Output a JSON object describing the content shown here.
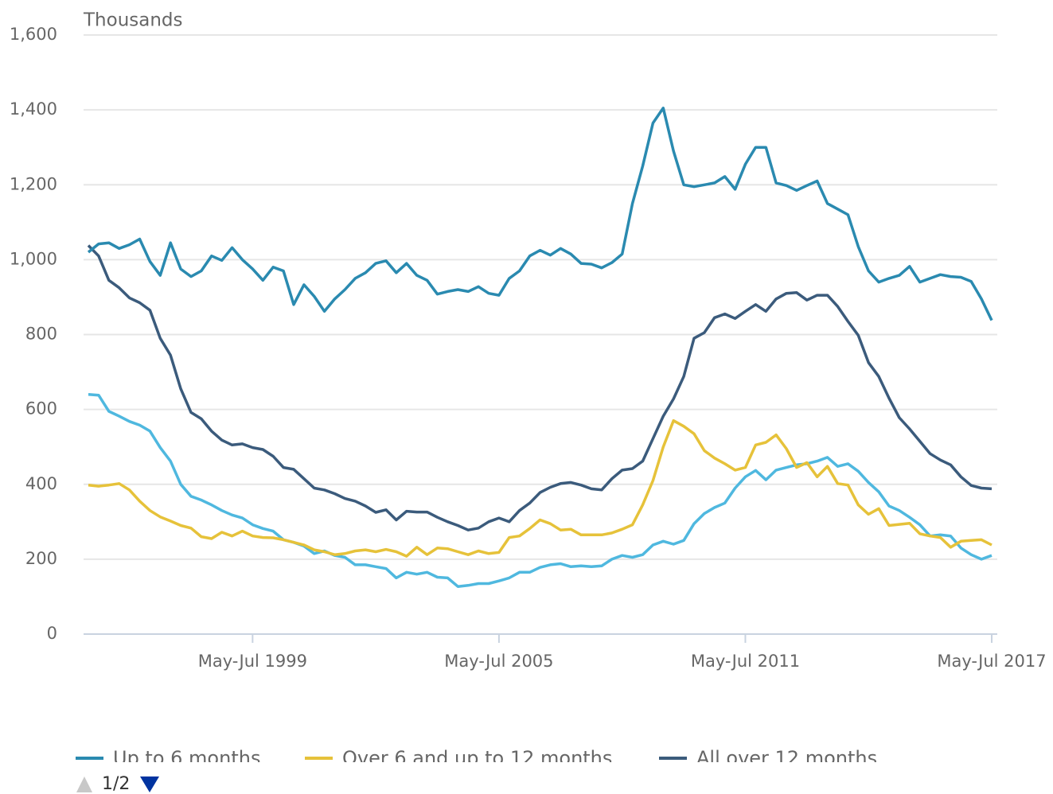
{
  "chart_data": {
    "type": "line",
    "y_label": "Thousands",
    "categories": [
      null,
      null,
      null,
      null,
      null,
      null,
      null,
      null,
      null,
      null,
      null,
      null,
      null,
      null,
      null,
      null,
      "May-Jul 1999",
      null,
      null,
      null,
      null,
      null,
      null,
      null,
      null,
      null,
      null,
      null,
      null,
      null,
      null,
      null,
      null,
      null,
      null,
      null,
      null,
      null,
      null,
      null,
      "May-Jul 2005",
      null,
      null,
      null,
      null,
      null,
      null,
      null,
      null,
      null,
      null,
      null,
      null,
      null,
      null,
      null,
      null,
      null,
      null,
      null,
      null,
      null,
      null,
      null,
      "May-Jul 2011",
      null,
      null,
      null,
      null,
      null,
      null,
      null,
      null,
      null,
      null,
      null,
      null,
      null,
      null,
      null,
      null,
      null,
      null,
      null,
      null,
      null,
      null,
      null,
      "May-Jul 2017"
    ],
    "series": [
      {
        "name": "Up to 6 months",
        "color": "#2a8ab0",
        "values": [
          1020,
          1042,
          1045,
          1030,
          1040,
          1055,
          995,
          958,
          1045,
          975,
          955,
          970,
          1010,
          998,
          1032,
          1000,
          975,
          945,
          980,
          970,
          880,
          933,
          902,
          862,
          895,
          920,
          950,
          965,
          990,
          997,
          965,
          990,
          958,
          945,
          908,
          915,
          920,
          915,
          928,
          910,
          905,
          950,
          970,
          1010,
          1025,
          1012,
          1030,
          1015,
          990,
          988,
          978,
          992,
          1015,
          1150,
          1250,
          1365,
          1405,
          1290,
          1200,
          1195,
          1200,
          1205,
          1222,
          1188,
          1255,
          1300,
          1300,
          1205,
          1198,
          1185,
          1198,
          1210,
          1150,
          1135,
          1120,
          1035,
          970,
          940,
          950,
          958,
          982,
          940,
          950,
          960,
          955,
          953,
          942,
          895,
          838
        ]
      },
      {
        "name": "Over 6 and up to 12 months",
        "color": "#e6c23a",
        "values": [
          398,
          395,
          398,
          402,
          385,
          355,
          330,
          313,
          302,
          290,
          283,
          260,
          255,
          272,
          262,
          275,
          262,
          258,
          257,
          252,
          245,
          238,
          225,
          220,
          212,
          215,
          222,
          225,
          220,
          226,
          220,
          208,
          232,
          212,
          230,
          228,
          220,
          212,
          222,
          215,
          218,
          258,
          262,
          282,
          305,
          295,
          278,
          280,
          265,
          265,
          265,
          270,
          280,
          292,
          345,
          410,
          500,
          570,
          555,
          535,
          490,
          470,
          455,
          438,
          445,
          505,
          512,
          532,
          495,
          445,
          458,
          420,
          448,
          402,
          398,
          345,
          320,
          335,
          290,
          293,
          296,
          268,
          262,
          258,
          232,
          248,
          250,
          252,
          238
        ]
      },
      {
        "name": "All over 12 months",
        "color": "#3b5b7c",
        "values": [
          1038,
          1010,
          945,
          925,
          898,
          885,
          865,
          790,
          745,
          655,
          592,
          575,
          542,
          518,
          505,
          508,
          498,
          493,
          475,
          445,
          440,
          415,
          390,
          385,
          375,
          362,
          355,
          342,
          325,
          332,
          305,
          328,
          326,
          326,
          312,
          300,
          290,
          278,
          283,
          300,
          310,
          300,
          330,
          350,
          378,
          392,
          402,
          405,
          398,
          388,
          385,
          415,
          438,
          442,
          462,
          522,
          582,
          628,
          688,
          790,
          805,
          845,
          855,
          843,
          862,
          880,
          862,
          895,
          910,
          912,
          892,
          905,
          905,
          875,
          835,
          798,
          725,
          688,
          630,
          578,
          548,
          515,
          482,
          465,
          452,
          420,
          397,
          390,
          388
        ]
      },
      {
        "color": "#4fb8df",
        "values": [
          640,
          638,
          595,
          582,
          568,
          558,
          542,
          498,
          462,
          400,
          368,
          358,
          345,
          330,
          318,
          310,
          292,
          282,
          275,
          252,
          245,
          235,
          215,
          222,
          210,
          205,
          185,
          185,
          180,
          175,
          150,
          165,
          160,
          165,
          152,
          150,
          127,
          130,
          135,
          135,
          142,
          150,
          165,
          165,
          178,
          185,
          188,
          180,
          182,
          180,
          182,
          200,
          210,
          205,
          212,
          238,
          248,
          240,
          250,
          295,
          322,
          338,
          350,
          390,
          420,
          437,
          412,
          438,
          445,
          452,
          455,
          462,
          472,
          448,
          455,
          435,
          405,
          380,
          342,
          330,
          312,
          292,
          262,
          265,
          262,
          230,
          212,
          200,
          210
        ]
      }
    ],
    "ylim": [
      0,
      1600
    ],
    "yticks": [
      0,
      200,
      400,
      600,
      800,
      {
        "value": 1000,
        "label": "1,000"
      },
      {
        "value": 1200,
        "label": "1,200"
      },
      {
        "value": 1400,
        "label": "1,400"
      },
      {
        "value": 1600,
        "label": "1,600"
      }
    ],
    "grid": true
  },
  "pager": {
    "text": "1/2"
  }
}
